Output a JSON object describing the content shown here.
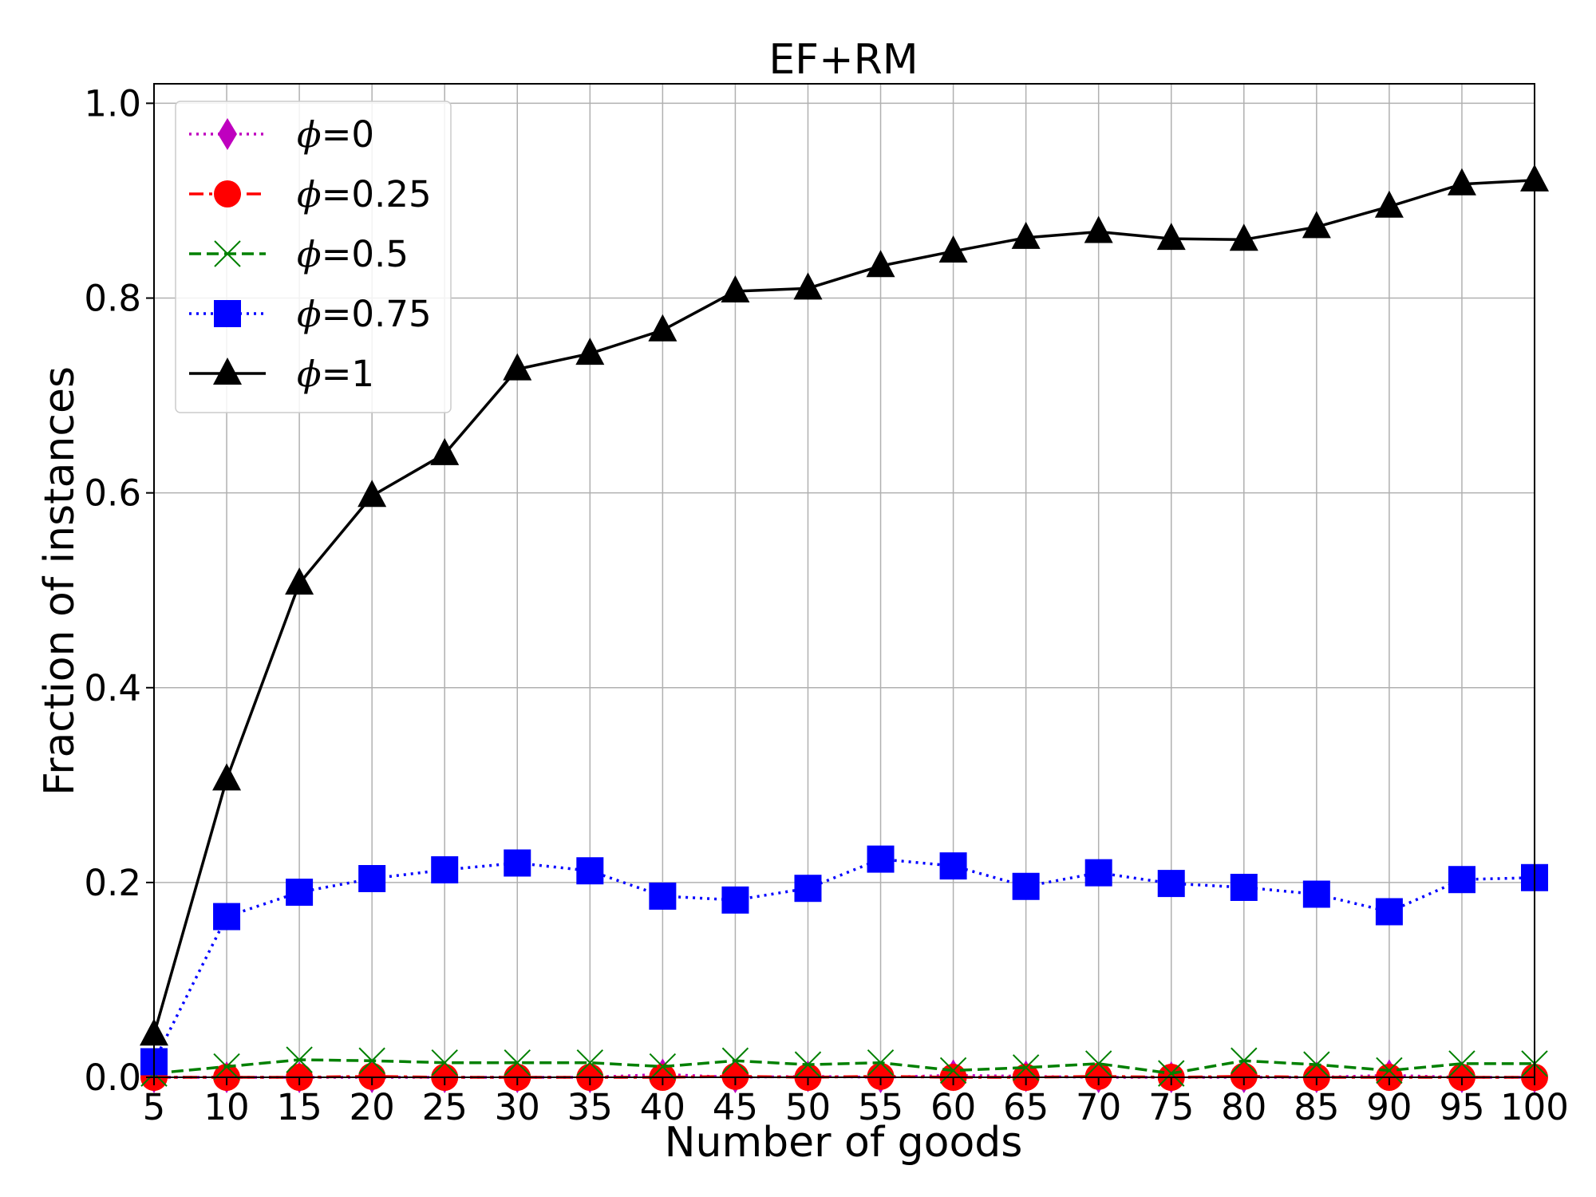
{
  "chart_data": {
    "type": "line",
    "title": "EF+RM",
    "xlabel": "Number of goods",
    "ylabel": "Fraction of instances",
    "xlim": [
      5,
      100
    ],
    "ylim": [
      0.0,
      1.02
    ],
    "grid": true,
    "legend_position": "top-left",
    "x": [
      5,
      10,
      15,
      20,
      25,
      30,
      35,
      40,
      45,
      50,
      55,
      60,
      65,
      70,
      75,
      80,
      85,
      90,
      95,
      100
    ],
    "x_ticks": [
      "5",
      "10",
      "15",
      "20",
      "25",
      "30",
      "35",
      "40",
      "45",
      "50",
      "55",
      "60",
      "65",
      "70",
      "75",
      "80",
      "85",
      "90",
      "95",
      "100"
    ],
    "y_ticks": [
      {
        "value": 0.0,
        "label": "0.0"
      },
      {
        "value": 0.2,
        "label": "0.2"
      },
      {
        "value": 0.4,
        "label": "0.4"
      },
      {
        "value": 0.6,
        "label": "0.6"
      },
      {
        "value": 0.8,
        "label": "0.8"
      },
      {
        "value": 1.0,
        "label": "1.0"
      }
    ],
    "series": [
      {
        "phi": "0",
        "color": "#bf00bf",
        "marker": "diamond",
        "linestyle": "dotted",
        "values": [
          0.0,
          0.0,
          0.0,
          0.0,
          0.0,
          0.0,
          0.0,
          0.003,
          0.0,
          0.001,
          0.0,
          0.002,
          0.001,
          0.0,
          0.0,
          0.0,
          0.0,
          0.002,
          0.0,
          0.0
        ]
      },
      {
        "phi": "0.25",
        "color": "#ff0000",
        "marker": "circle",
        "linestyle": "dashdot",
        "values": [
          0.0,
          0.0,
          0.0,
          0.001,
          0.0,
          0.0,
          0.0,
          0.0,
          0.001,
          0.0,
          0.001,
          0.0,
          0.0,
          0.001,
          0.0,
          0.001,
          0.0,
          0.0,
          0.0,
          0.0
        ]
      },
      {
        "phi": "0.5",
        "color": "#008000",
        "marker": "x",
        "linestyle": "dashed",
        "values": [
          0.004,
          0.011,
          0.018,
          0.017,
          0.015,
          0.015,
          0.015,
          0.011,
          0.017,
          0.013,
          0.015,
          0.007,
          0.01,
          0.014,
          0.004,
          0.017,
          0.013,
          0.007,
          0.014,
          0.014
        ]
      },
      {
        "phi": "0.75",
        "color": "#0000ff",
        "marker": "square",
        "linestyle": "dotted",
        "values": [
          0.016,
          0.165,
          0.19,
          0.204,
          0.213,
          0.22,
          0.212,
          0.186,
          0.182,
          0.194,
          0.224,
          0.217,
          0.196,
          0.21,
          0.199,
          0.195,
          0.188,
          0.17,
          0.203,
          0.205
        ]
      },
      {
        "phi": "1",
        "color": "#000000",
        "marker": "triangle",
        "linestyle": "solid",
        "values": [
          0.044,
          0.306,
          0.507,
          0.597,
          0.64,
          0.727,
          0.743,
          0.767,
          0.807,
          0.81,
          0.833,
          0.848,
          0.862,
          0.868,
          0.861,
          0.86,
          0.873,
          0.894,
          0.917,
          0.921
        ]
      }
    ]
  }
}
